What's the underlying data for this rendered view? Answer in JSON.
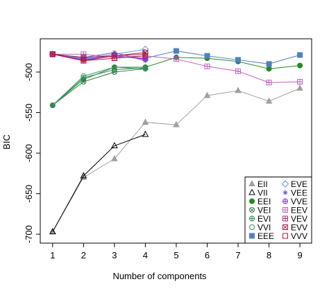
{
  "chart_data": {
    "type": "line",
    "xlabel": "Number of components",
    "ylabel": "BIC",
    "x": [
      1,
      2,
      3,
      4,
      5,
      6,
      7,
      8,
      9
    ],
    "xlim": [
      0.6,
      9.38
    ],
    "xticks": [
      1,
      2,
      3,
      4,
      5,
      6,
      7,
      8,
      9
    ],
    "ylim": [
      -711,
      -459
    ],
    "yticks": [
      -700,
      -650,
      -600,
      -550,
      -500
    ],
    "legend": "bottom-right",
    "series": [
      {
        "name": "EII",
        "color": "#a0a0a0",
        "marker": "triangle-filled",
        "values": [
          -697,
          -630,
          -607,
          -562,
          -565,
          -529,
          -523,
          -536,
          -520
        ]
      },
      {
        "name": "VII",
        "color": "#000000",
        "marker": "triangle",
        "values": [
          -697,
          -628,
          -591,
          -577,
          null,
          null,
          null,
          null,
          null
        ]
      },
      {
        "name": "EEI",
        "color": "#228b22",
        "marker": "circle-filled",
        "values": [
          -541,
          -509,
          -494,
          -494,
          -482,
          -483,
          -487,
          -496,
          -492
        ]
      },
      {
        "name": "VEI",
        "color": "#3c7a4e",
        "marker": "circle-x",
        "values": [
          -541,
          -512,
          -500,
          -496,
          null,
          null,
          null,
          null,
          null
        ]
      },
      {
        "name": "EVI",
        "color": "#2e8b57",
        "marker": "circle-plus",
        "values": [
          -541,
          -507,
          -497,
          -495,
          null,
          null,
          null,
          null,
          null
        ]
      },
      {
        "name": "VVI",
        "color": "#3a9a6a",
        "marker": "circle",
        "values": [
          -541,
          -505,
          -494,
          -496,
          null,
          null,
          null,
          null,
          null
        ]
      },
      {
        "name": "EEE",
        "color": "#4f7fc4",
        "marker": "square-filled",
        "values": [
          -478,
          -484,
          -480,
          -483,
          -474,
          -480,
          -485,
          -490,
          -479
        ]
      },
      {
        "name": "EVE",
        "color": "#6495ed",
        "marker": "diamond",
        "values": [
          -478,
          -483,
          -478,
          -472,
          null,
          null,
          null,
          null,
          null
        ]
      },
      {
        "name": "VEE",
        "color": "#6a5acd",
        "marker": "asterisk",
        "values": [
          -478,
          -482,
          -476,
          -486,
          null,
          null,
          null,
          null,
          null
        ]
      },
      {
        "name": "VVE",
        "color": "#8a2be2",
        "marker": "circle-plus",
        "values": [
          -478,
          -485,
          -480,
          -484,
          null,
          null,
          null,
          null,
          null
        ]
      },
      {
        "name": "EEV",
        "color": "#c060c0",
        "marker": "square-plus",
        "values": [
          -478,
          -478,
          -482,
          -480,
          -484,
          -493,
          -499,
          -513,
          -512
        ]
      },
      {
        "name": "VEV",
        "color": "#b03070",
        "marker": "square-plus",
        "values": [
          -478,
          -486,
          -480,
          -478,
          null,
          null,
          null,
          null,
          null
        ]
      },
      {
        "name": "EVV",
        "color": "#a0204a",
        "marker": "square-x",
        "values": [
          -478,
          -482,
          -480,
          -476,
          null,
          null,
          null,
          null,
          null
        ]
      },
      {
        "name": "VVV",
        "color": "#c0103a",
        "marker": "square",
        "values": [
          -478,
          -486,
          -483,
          -480,
          null,
          null,
          null,
          null,
          null
        ]
      }
    ]
  }
}
